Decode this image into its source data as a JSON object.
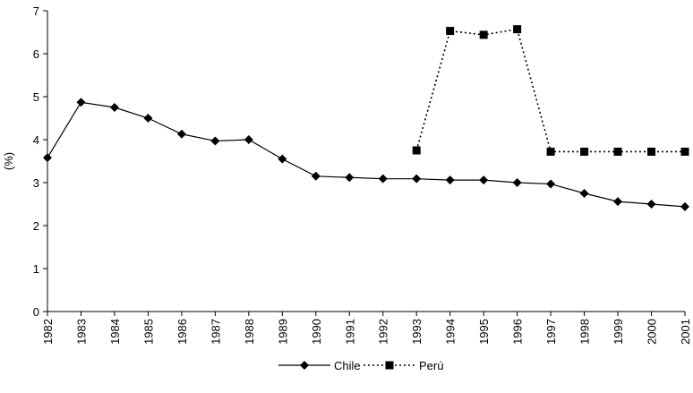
{
  "chart_data": {
    "type": "line",
    "title": "",
    "xlabel": "",
    "ylabel": "(%)",
    "ylim": [
      0,
      7
    ],
    "yticks": [
      0,
      1,
      2,
      3,
      4,
      5,
      6,
      7
    ],
    "grid": false,
    "legend_position": "bottom",
    "categories": [
      "1982",
      "1983",
      "1984",
      "1985",
      "1986",
      "1987",
      "1988",
      "1989",
      "1990",
      "1991",
      "1992",
      "1993",
      "1994",
      "1995",
      "1996",
      "1997",
      "1998",
      "1999",
      "2000",
      "2001"
    ],
    "series": [
      {
        "name": "Chile",
        "marker": "diamond",
        "line_style": "solid",
        "color": "#000000",
        "values": [
          3.58,
          4.87,
          4.75,
          4.5,
          4.13,
          3.97,
          4.0,
          3.55,
          3.15,
          3.12,
          3.09,
          3.09,
          3.06,
          3.06,
          3.0,
          2.97,
          2.75,
          2.56,
          2.5,
          2.44
        ]
      },
      {
        "name": "Perú",
        "marker": "square",
        "line_style": "dotted",
        "color": "#000000",
        "values": [
          null,
          null,
          null,
          null,
          null,
          null,
          null,
          null,
          null,
          null,
          null,
          3.75,
          6.53,
          6.44,
          6.57,
          3.72,
          3.72,
          3.72,
          3.72,
          3.72
        ]
      }
    ]
  }
}
